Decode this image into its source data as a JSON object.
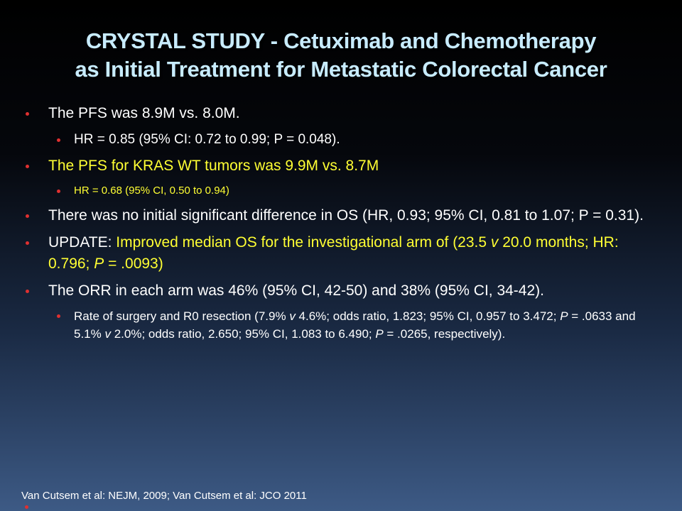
{
  "title": {
    "line1": "CRYSTAL STUDY - Cetuximab and Chemotherapy",
    "line2": "as Initial Treatment for Metastatic Colorectal Cancer"
  },
  "bullets": {
    "pfs": "The PFS was 8.9M vs. 8.0M.",
    "pfs_hr": "HR = 0.85 (95% CI: 0.72 to 0.99; P = 0.048).",
    "kras": "The PFS for KRAS WT tumors was 9.9M vs. 8.7M",
    "kras_hr": "HR = 0.68 (95% CI, 0.50 to 0.94)",
    "os": "There was no initial significant difference in OS (HR, 0.93; 95% CI, 0.81 to 1.07; P = 0.31).",
    "update_label": "UPDATE: ",
    "update_text_1": "Improved median OS for the investigational arm  of (23.5 ",
    "update_v": "v",
    "update_text_2": " 20.0 months; HR: 0.796; ",
    "update_p": "P",
    "update_text_3": " = .0093)",
    "orr": "The ORR in each arm was 46% (95% CI, 42-50) and 38% (95% CI, 34-42).",
    "surgery_1": "Rate of surgery and R0 resection (7.9% ",
    "surgery_v1": "v",
    "surgery_2": " 4.6%; odds ratio, 1.823; 95% CI, 0.957 to 3.472; ",
    "surgery_p1": "P",
    "surgery_3": " = .0633 and 5.1% ",
    "surgery_v2": "v",
    "surgery_4": " 2.0%; odds ratio, 2.650; 95% CI, 1.083 to 6.490; ",
    "surgery_p2": "P",
    "surgery_5": " = .0265, respectively)."
  },
  "footer": "Van Cutsem et al:  NEJM, 2009; Van Cutsem et al: JCO 2011",
  "colors": {
    "title": "#c8ecff",
    "highlight": "#ffff33",
    "bullet": "#e03030"
  }
}
